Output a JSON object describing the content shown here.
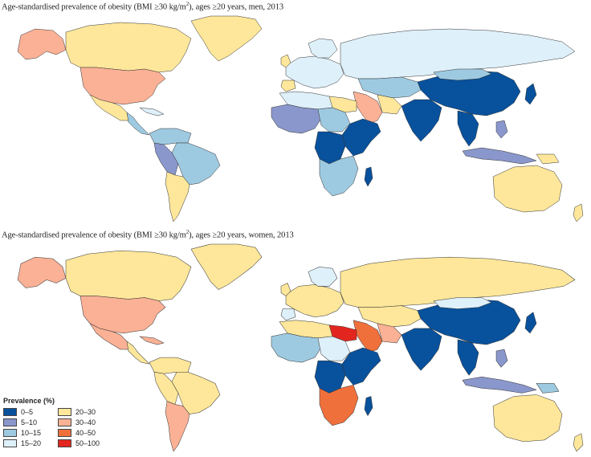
{
  "colors": {
    "bin_0_5": "#08519c",
    "bin_5_10": "#8a97cc",
    "bin_10_15": "#9ecae1",
    "bin_15_20": "#def0fa",
    "bin_20_30": "#fee79a",
    "bin_30_40": "#fbb195",
    "bin_40_50": "#f0703c",
    "bin_50_100": "#e2261f"
  },
  "maps": [
    {
      "title_before": "Age-standardised prevalence of obesity (BMI ≥30 kg/m",
      "title_sup": "2",
      "title_after": "), ages ≥20 years, men, 2013"
    },
    {
      "title_before": "Age-standardised prevalence of obesity (BMI ≥30 kg/m",
      "title_sup": "2",
      "title_after": "), ages ≥20 years, women, 2013"
    }
  ],
  "legend": {
    "title": "Prevalence (%)",
    "items": [
      {
        "label": "0–5",
        "color": "#08519c"
      },
      {
        "label": "5–10",
        "color": "#8a97cc"
      },
      {
        "label": "10–15",
        "color": "#9ecae1"
      },
      {
        "label": "15–20",
        "color": "#def0fa"
      },
      {
        "label": "20–30",
        "color": "#fee79a"
      },
      {
        "label": "30–40",
        "color": "#fbb195"
      },
      {
        "label": "40–50",
        "color": "#f0703c"
      },
      {
        "label": "50–100",
        "color": "#e2261f"
      }
    ]
  }
}
